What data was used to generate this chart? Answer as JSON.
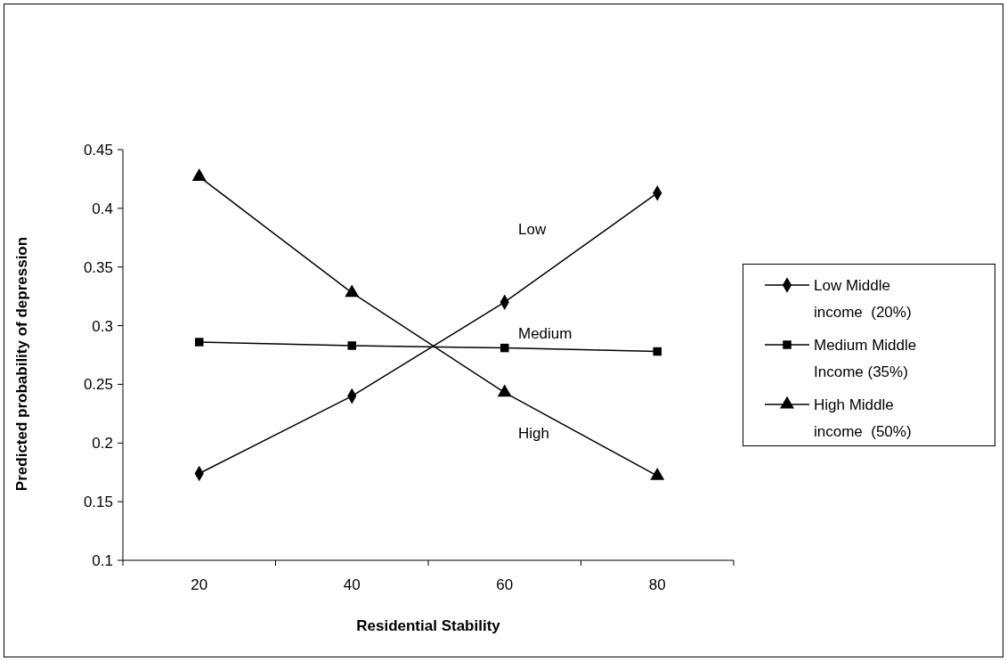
{
  "chart_data": {
    "type": "line",
    "xlabel": "Residential Stability",
    "ylabel": "Predicted probability of depression",
    "categories": [
      "20",
      "40",
      "60",
      "80"
    ],
    "series": [
      {
        "name": "Low Middle income  (20%)",
        "color": "#000000",
        "marker": "diamond",
        "values": [
          0.174,
          0.24,
          0.32,
          0.413
        ]
      },
      {
        "name": "Medium Middle Income (35%)",
        "color": "#000000",
        "marker": "square",
        "values": [
          0.286,
          0.283,
          0.281,
          0.278
        ]
      },
      {
        "name": "High Middle income  (50%)",
        "color": "#000000",
        "marker": "triangle",
        "values": [
          0.427,
          0.328,
          0.243,
          0.172
        ]
      }
    ],
    "ylim": [
      0.1,
      0.45
    ],
    "yticks": [
      0.1,
      0.15,
      0.2,
      0.25,
      0.3,
      0.35,
      0.4,
      0.45
    ],
    "annotations": [
      "Low",
      "Medium",
      "High"
    ],
    "legend": "right",
    "line_style": "solid",
    "grid": false
  }
}
